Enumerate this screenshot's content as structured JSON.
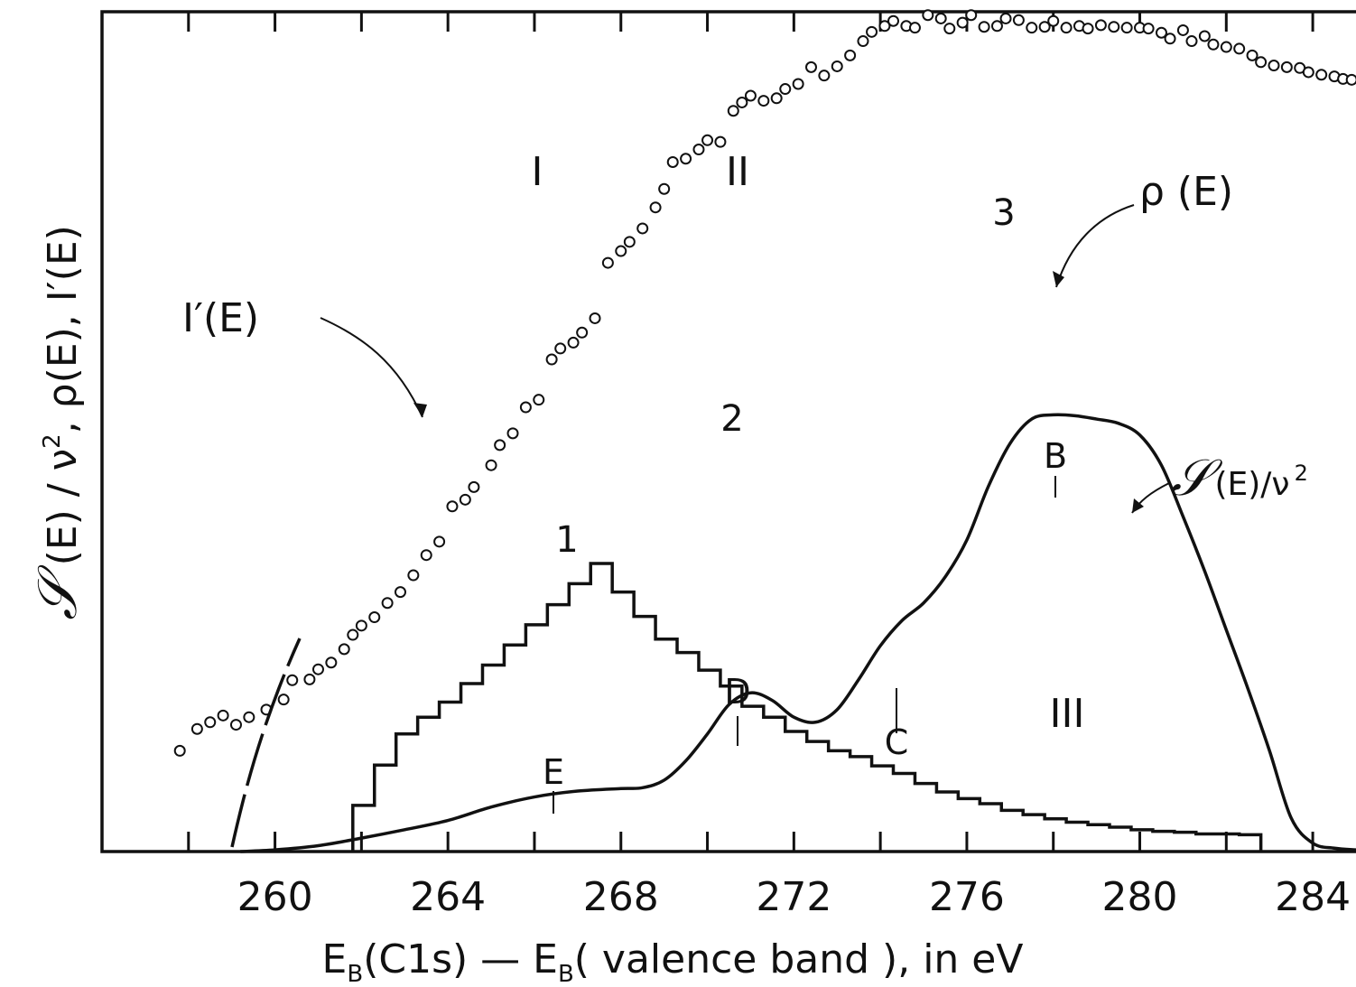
{
  "chart_data": {
    "type": "line",
    "xlabel_parts": {
      "a": "E",
      "a_sub": "B",
      "b": "(C1s) — E",
      "b_sub": "B",
      "c": "( valence  band ), in eV"
    },
    "ylabel_parts": {
      "s1": "𝒮",
      "t1": " (E) / ν",
      "sup1": "2",
      "t2": ",  ρ(E),  I′(E)"
    },
    "xlim": [
      256,
      285
    ],
    "ylim": [
      0,
      100
    ],
    "x_tick_labels": [
      "260",
      "264",
      "268",
      "272",
      "276",
      "280",
      "284"
    ],
    "x_tick_values": [
      260,
      264,
      268,
      272,
      276,
      280,
      284
    ],
    "x_minor_ticks": [
      258,
      262,
      266,
      270,
      274,
      278,
      282
    ],
    "series": [
      {
        "name": "I′(E)",
        "style": "circles",
        "x": [
          257.8,
          258.2,
          258.5,
          258.8,
          259.1,
          259.4,
          259.8,
          260.2,
          260.4,
          260.8,
          261.0,
          261.3,
          261.6,
          261.8,
          262.0,
          262.3,
          262.6,
          262.9,
          263.2,
          263.5,
          263.8,
          264.1,
          264.4,
          264.6,
          265.0,
          265.2,
          265.5,
          265.8,
          266.1,
          266.4,
          266.6,
          266.9,
          267.1,
          267.4,
          267.7,
          268.0,
          268.2,
          268.5,
          268.8,
          269.0,
          269.2,
          269.5,
          269.8,
          270.0,
          270.3,
          270.6,
          270.8,
          271.0,
          271.3,
          271.6,
          271.8,
          272.1,
          272.4,
          272.7,
          273.0,
          273.3,
          273.6,
          273.8,
          274.1,
          274.3,
          274.6,
          274.8,
          275.1,
          275.4,
          275.6,
          275.9,
          276.1,
          276.4,
          276.7,
          276.9,
          277.2,
          277.5,
          277.8,
          278.0,
          278.3,
          278.6,
          278.8,
          279.1,
          279.4,
          279.7,
          280.0,
          280.2,
          280.5,
          280.7,
          281.0,
          281.2,
          281.5,
          281.7,
          282.0,
          282.3,
          282.6,
          282.8,
          283.1,
          283.4,
          283.7,
          283.9,
          284.2,
          284.5,
          284.7,
          284.9
        ],
        "y": [
          12.0,
          14.6,
          15.4,
          16.2,
          15.1,
          16.0,
          16.9,
          18.1,
          20.4,
          20.5,
          21.7,
          22.5,
          24.1,
          25.8,
          26.9,
          27.9,
          29.6,
          30.9,
          32.9,
          35.3,
          36.9,
          41.1,
          41.9,
          43.4,
          46.0,
          48.4,
          49.8,
          52.9,
          53.8,
          58.6,
          59.9,
          60.6,
          61.8,
          63.5,
          70.1,
          71.5,
          72.6,
          74.2,
          76.7,
          78.9,
          82.1,
          82.5,
          83.6,
          84.7,
          84.5,
          88.2,
          89.2,
          90.0,
          89.4,
          89.7,
          90.8,
          91.4,
          93.4,
          92.4,
          93.5,
          94.8,
          96.5,
          97.6,
          98.3,
          98.9,
          98.3,
          98.1,
          99.6,
          99.2,
          98.0,
          98.7,
          99.6,
          98.2,
          98.3,
          99.2,
          99.0,
          98.1,
          98.2,
          98.9,
          98.1,
          98.3,
          98.0,
          98.4,
          98.2,
          98.1,
          98.1,
          98.0,
          97.5,
          96.8,
          97.8,
          96.5,
          97.1,
          96.1,
          95.8,
          95.6,
          94.8,
          94.0,
          93.6,
          93.4,
          93.3,
          92.8,
          92.5,
          92.3,
          92.0,
          91.9
        ]
      },
      {
        "name": "ρ(E)",
        "style": "histogram",
        "x": [
          261.8,
          262.3,
          262.8,
          263.3,
          263.8,
          264.3,
          264.8,
          265.3,
          265.8,
          266.3,
          266.8,
          267.3,
          267.8,
          268.3,
          268.8,
          269.3,
          269.8,
          270.3,
          270.8,
          271.3,
          271.8,
          272.3,
          272.8,
          273.3,
          273.8,
          274.3,
          274.8,
          275.3,
          275.8,
          276.3,
          276.8,
          277.3,
          277.8,
          278.3,
          278.8,
          279.3,
          279.8,
          280.3,
          280.8,
          281.3,
          281.8,
          282.3
        ],
        "y": [
          5.5,
          10.3,
          14.0,
          16.0,
          17.8,
          20.0,
          22.2,
          24.6,
          27.0,
          29.4,
          31.9,
          34.3,
          30.9,
          28.0,
          25.3,
          23.7,
          21.6,
          19.7,
          17.3,
          16.0,
          14.3,
          13.1,
          12.0,
          11.3,
          10.2,
          9.3,
          8.1,
          7.1,
          6.3,
          5.7,
          4.9,
          4.4,
          3.9,
          3.5,
          3.2,
          2.9,
          2.6,
          2.4,
          2.3,
          2.1,
          2.1,
          2.0
        ]
      },
      {
        "name": "𝒮(E)/ν²",
        "style": "solid",
        "x": [
          259.2,
          260.0,
          261.0,
          262.0,
          263.0,
          264.0,
          265.0,
          266.0,
          267.0,
          268.0,
          268.5,
          269.0,
          269.5,
          270.0,
          270.5,
          271.0,
          271.5,
          272.0,
          272.5,
          273.0,
          273.5,
          274.0,
          274.5,
          275.0,
          275.5,
          276.0,
          276.5,
          277.0,
          277.5,
          278.0,
          278.5,
          279.0,
          279.5,
          280.0,
          280.5,
          281.0,
          281.5,
          282.0,
          282.5,
          283.0,
          283.5,
          284.0,
          284.5,
          285.0
        ],
        "y": [
          0,
          0.2,
          0.7,
          1.6,
          2.6,
          3.7,
          5.3,
          6.5,
          7.2,
          7.5,
          7.6,
          8.5,
          10.8,
          14.0,
          17.5,
          18.9,
          18.0,
          16.0,
          15.4,
          16.9,
          20.5,
          24.5,
          27.5,
          29.6,
          32.7,
          37.1,
          43.5,
          48.6,
          51.5,
          52.0,
          51.9,
          51.5,
          51.0,
          49.6,
          46.0,
          39.9,
          33.4,
          26.4,
          19.4,
          12.0,
          4.0,
          1.0,
          0.4,
          0.2
        ]
      }
    ],
    "annotations": {
      "roman_I": "I",
      "roman_II": "II",
      "roman_III": "III",
      "num_1": "1",
      "num_2": "2",
      "num_3": "3",
      "lab_I_prime": "I′(E)",
      "lab_rho": "ρ (E)",
      "lab_S": "𝒮",
      "lab_S_rest": "(E)/ν",
      "lab_S_sup": "2",
      "pt_B": "B",
      "pt_C": "C",
      "pt_D": "D",
      "pt_E": "E"
    }
  }
}
